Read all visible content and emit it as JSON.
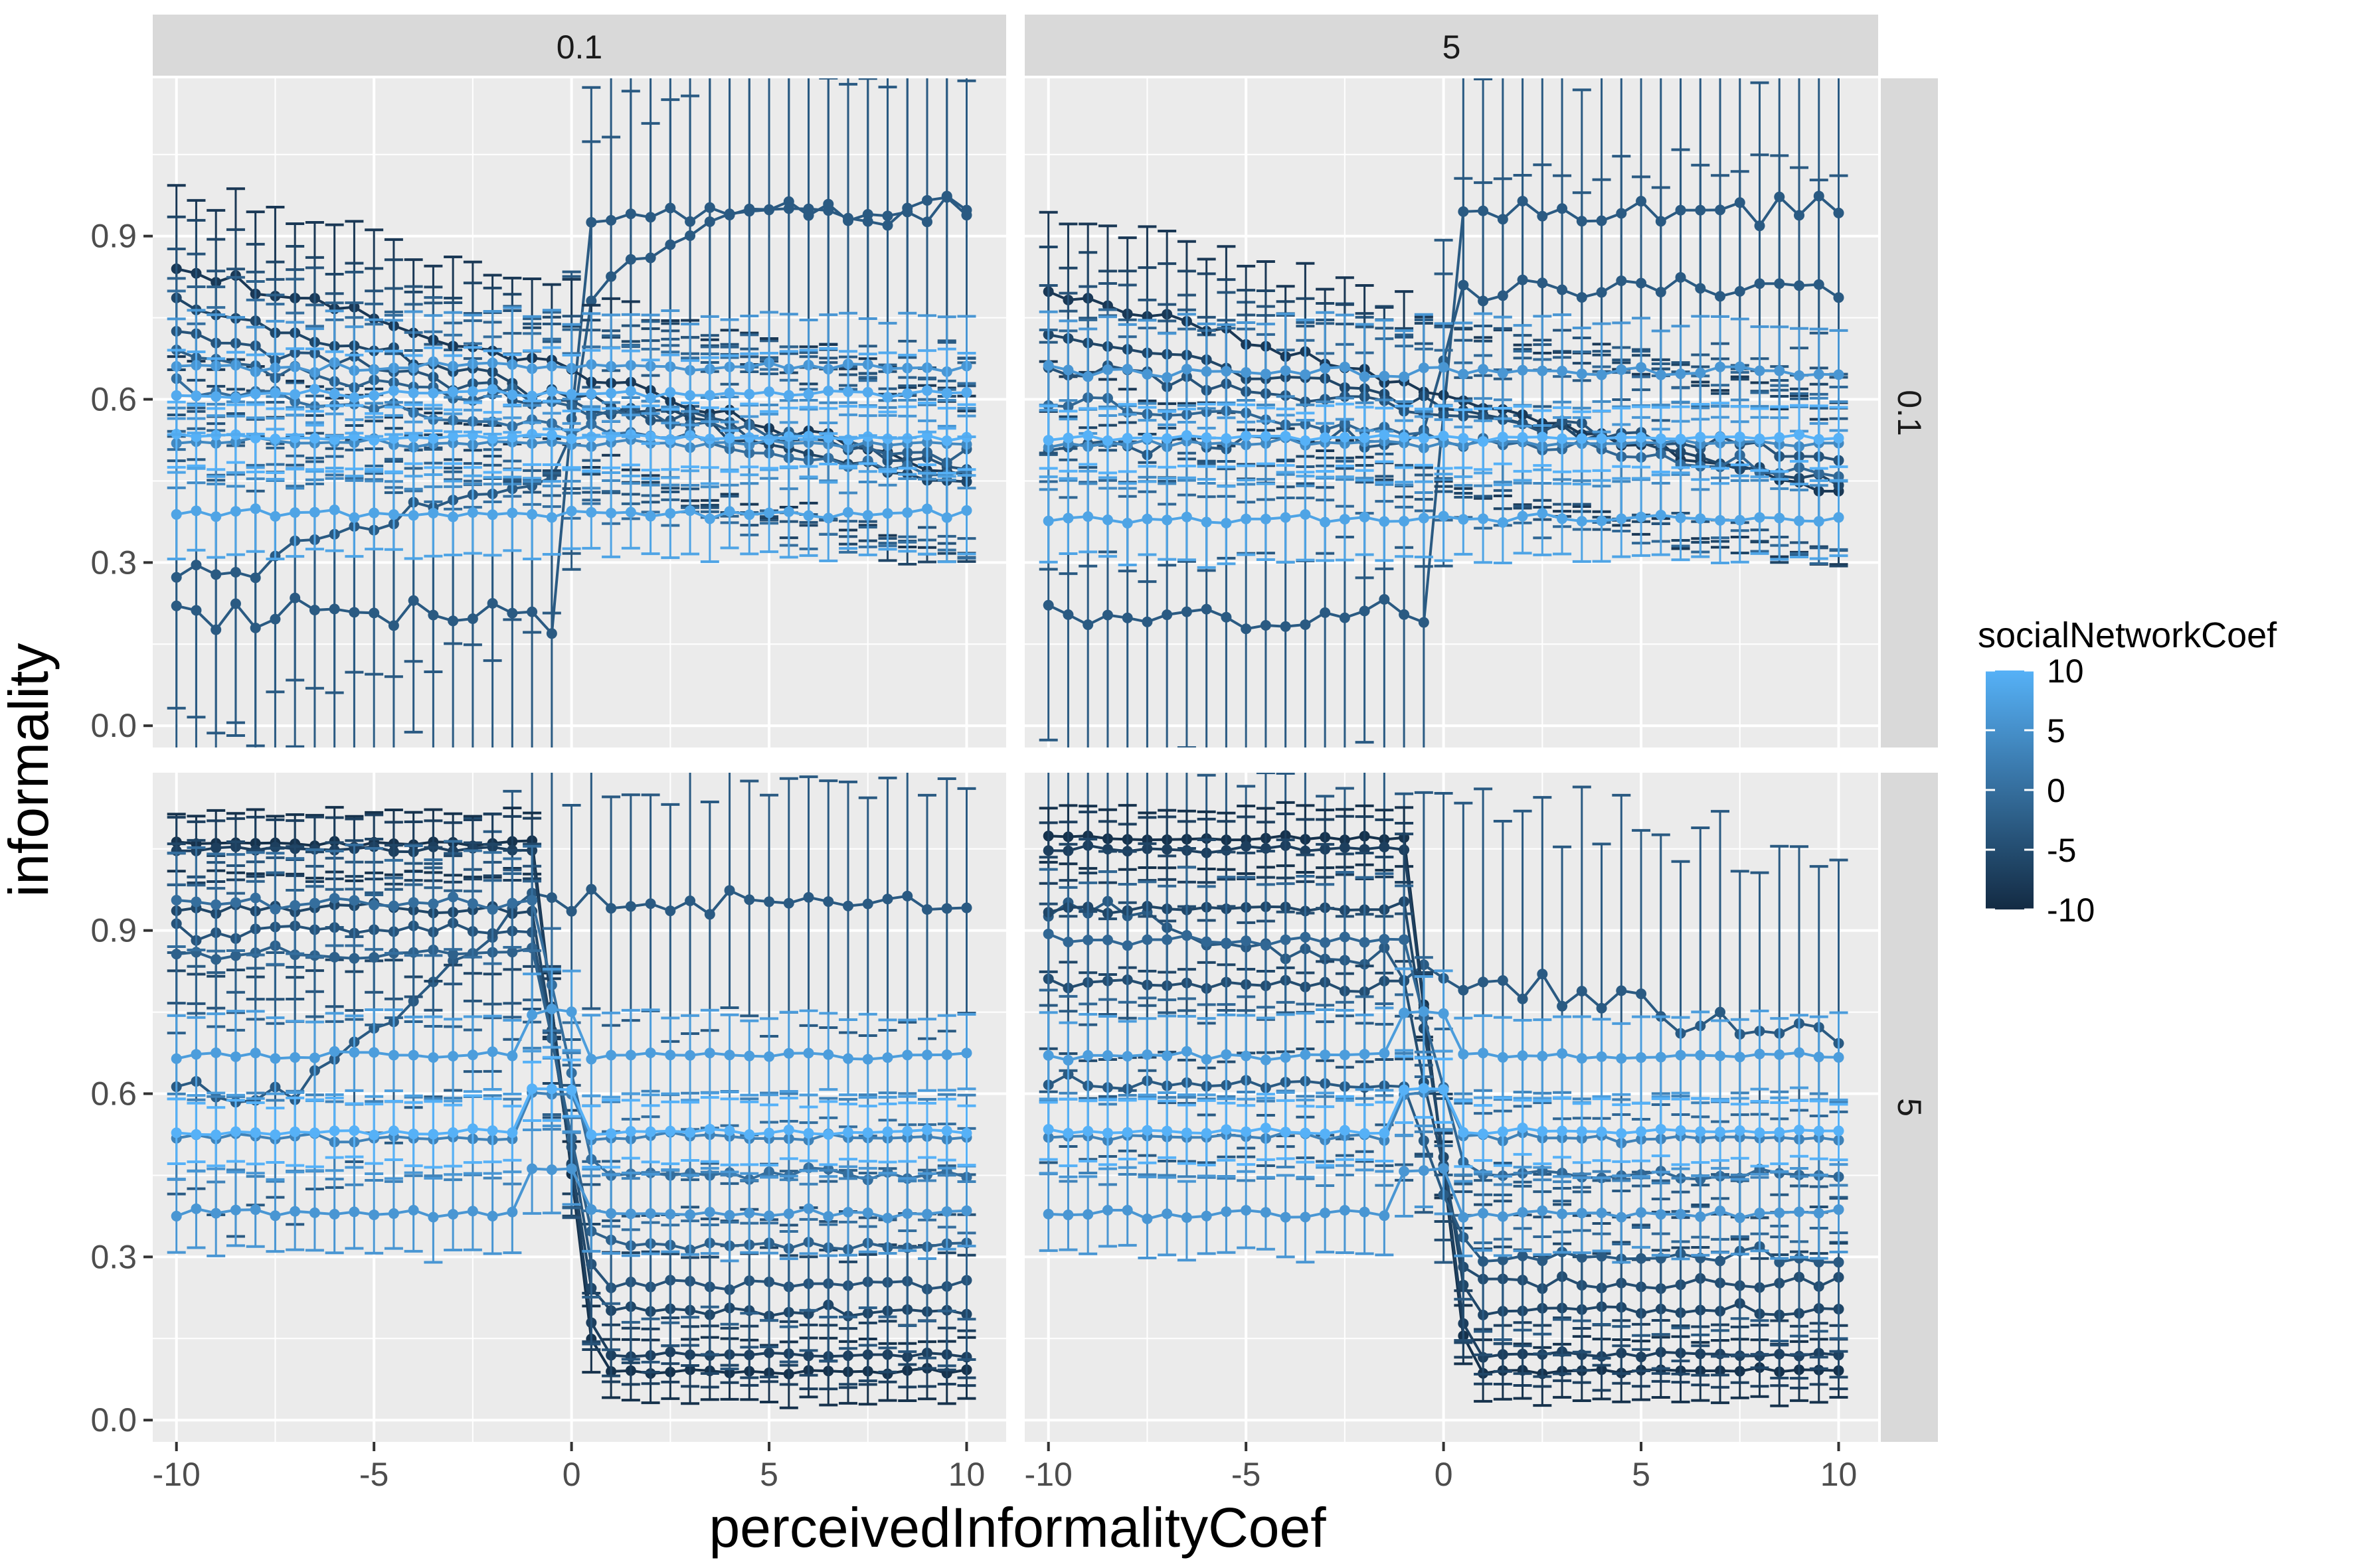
{
  "chart_data": {
    "type": "line",
    "xlabel": "perceivedInformalityCoef",
    "ylabel": "informality",
    "xlim": [
      -10.6,
      11
    ],
    "ylim": [
      -0.04,
      1.19
    ],
    "x_ticks": [
      -10,
      -5,
      0,
      5,
      10
    ],
    "x_tick_labels": [
      "-10",
      "-5",
      "0",
      "5",
      "10"
    ],
    "y_ticks": [
      0.0,
      0.3,
      0.6,
      0.9
    ],
    "y_tick_labels": [
      "0.0",
      "0.3",
      "0.6",
      "0.9"
    ],
    "grid": true,
    "facet_columns": [
      "0.1",
      "5"
    ],
    "facet_rows": [
      "0.1",
      "5"
    ],
    "legend": {
      "title": "socialNetworkCoef",
      "position": "right",
      "labels": [
        "10",
        "5",
        "0",
        "-5",
        "-10"
      ],
      "values": [
        10,
        5,
        0,
        -5,
        -10
      ],
      "color_low": "#132B43",
      "color_high": "#56B1F7"
    },
    "panel_background": "#EBEBEB",
    "strip_background": "#D9D9D9",
    "panels": [
      {
        "col": "0.1",
        "row": "0.1",
        "series": [
          {
            "color_value": -3,
            "style": "low-high",
            "low": 0.2,
            "high": 0.94,
            "low_spread": 0.13,
            "high_spread": 0.13,
            "left_level": 0.27,
            "left_slope": 0.02,
            "sd": 0.15
          },
          {
            "color_value": -3,
            "style": "step",
            "low": 0.2,
            "high": 0.94,
            "sd": 0.15
          },
          {
            "color_value": -8,
            "style": "decline",
            "start": 0.84,
            "end": 0.46,
            "sd": 0.08
          },
          {
            "color_value": -6,
            "style": "decline",
            "start": 0.77,
            "end": 0.44,
            "sd": 0.08
          },
          {
            "color_value": -4,
            "style": "decline",
            "start": 0.72,
            "end": 0.47,
            "sd": 0.08
          },
          {
            "color_value": -2,
            "style": "decline",
            "start": 0.68,
            "end": 0.49,
            "sd": 0.08
          },
          {
            "color_value": 0,
            "style": "decline",
            "start": 0.63,
            "end": 0.46,
            "sd": 0.08
          },
          {
            "color_value": 4,
            "style": "flat",
            "level": 0.52,
            "sd": 0.04
          },
          {
            "color_value": 6,
            "style": "flat",
            "level": 0.66,
            "sd": 0.05
          },
          {
            "color_value": 8,
            "style": "flat",
            "level": 0.39,
            "sd": 0.04
          },
          {
            "color_value": 10,
            "style": "flat",
            "level": 0.53,
            "sd": 0.03
          },
          {
            "color_value": 9,
            "style": "flat",
            "level": 0.61,
            "sd": 0.04
          }
        ]
      },
      {
        "col": "5",
        "row": "0.1",
        "series": [
          {
            "color_value": -3,
            "style": "step",
            "low": 0.2,
            "high": 0.94,
            "sd": 0.15
          },
          {
            "color_value": -3,
            "style": "step",
            "low": 0.52,
            "high": 0.8,
            "sd": 0.12
          },
          {
            "color_value": -8,
            "style": "decline",
            "start": 0.8,
            "end": 0.42,
            "sd": 0.08
          },
          {
            "color_value": -6,
            "style": "decline",
            "start": 0.72,
            "end": 0.45,
            "sd": 0.08
          },
          {
            "color_value": -4,
            "style": "decline",
            "start": 0.66,
            "end": 0.49,
            "sd": 0.08
          },
          {
            "color_value": -1,
            "style": "decline",
            "start": 0.6,
            "end": 0.46,
            "sd": 0.08
          },
          {
            "color_value": 4,
            "style": "flat",
            "level": 0.52,
            "sd": 0.04
          },
          {
            "color_value": 6,
            "style": "flat",
            "level": 0.65,
            "sd": 0.05
          },
          {
            "color_value": 8,
            "style": "flat",
            "level": 0.38,
            "sd": 0.04
          },
          {
            "color_value": 10,
            "style": "flat",
            "level": 0.53,
            "sd": 0.03
          }
        ]
      },
      {
        "col": "0.1",
        "row": "5",
        "series": [
          {
            "color_value": -3,
            "style": "sigmoid-up",
            "low": 0.6,
            "high": 0.95,
            "sd": 0.12
          },
          {
            "color_value": -9,
            "style": "step-down",
            "high": 1.06,
            "low": 0.09,
            "sd": 0.03
          },
          {
            "color_value": -7,
            "style": "step-down",
            "high": 1.05,
            "low": 0.12,
            "sd": 0.03
          },
          {
            "color_value": -6,
            "style": "step-down",
            "high": 0.94,
            "low": 0.2,
            "sd": 0.06
          },
          {
            "color_value": -4,
            "style": "step-down",
            "high": 0.9,
            "low": 0.25,
            "sd": 0.07
          },
          {
            "color_value": -2,
            "style": "step-down",
            "high": 0.86,
            "low": 0.32,
            "sd": 0.07
          },
          {
            "color_value": 0,
            "style": "step-down",
            "high": 0.95,
            "low": 0.45,
            "sd": 0.05
          },
          {
            "color_value": 3,
            "style": "step-up",
            "low": 0.52,
            "high": 0.52,
            "sd": 0.04
          },
          {
            "color_value": 6,
            "style": "step-up",
            "low": 0.38,
            "high": 0.38,
            "sd": 0.04
          },
          {
            "color_value": 7,
            "style": "step-up",
            "low": 0.67,
            "high": 0.67,
            "sd": 0.04
          },
          {
            "color_value": 10,
            "style": "step-up",
            "low": 0.53,
            "high": 0.53,
            "sd": 0.03
          }
        ]
      },
      {
        "col": "5",
        "row": "5",
        "series": [
          {
            "color_value": -3,
            "style": "decline-fast",
            "start": 0.95,
            "end": 0.72,
            "sd": 0.18
          },
          {
            "color_value": -9,
            "style": "step-down",
            "high": 1.07,
            "low": 0.09,
            "sd": 0.03
          },
          {
            "color_value": -7,
            "style": "step-down",
            "high": 1.05,
            "low": 0.12,
            "sd": 0.03
          },
          {
            "color_value": -6,
            "style": "step-down",
            "high": 0.94,
            "low": 0.2,
            "sd": 0.06
          },
          {
            "color_value": -5,
            "style": "step-down",
            "high": 0.8,
            "low": 0.25,
            "sd": 0.07
          },
          {
            "color_value": -3,
            "style": "step-down",
            "high": 0.62,
            "low": 0.3,
            "sd": 0.07
          },
          {
            "color_value": -1,
            "style": "step-down",
            "high": 0.88,
            "low": 0.45,
            "sd": 0.06
          },
          {
            "color_value": 3,
            "style": "step-up",
            "low": 0.52,
            "high": 0.52,
            "sd": 0.04
          },
          {
            "color_value": 6,
            "style": "step-up",
            "low": 0.38,
            "high": 0.38,
            "sd": 0.04
          },
          {
            "color_value": 7,
            "style": "step-up",
            "low": 0.67,
            "high": 0.67,
            "sd": 0.04
          },
          {
            "color_value": 10,
            "style": "step-up",
            "low": 0.53,
            "high": 0.53,
            "sd": 0.03
          }
        ]
      }
    ]
  }
}
